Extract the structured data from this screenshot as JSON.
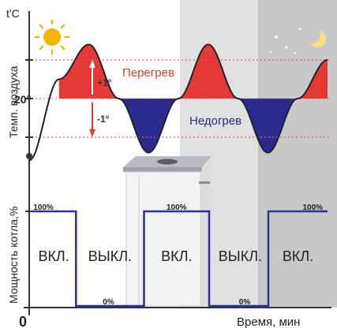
{
  "chart_data": [
    {
      "type": "line",
      "ylabel": "Темп. воздуха",
      "y_unit": "t'C",
      "y_reference_label": "20°",
      "annotations": {
        "plus_delta": "+1°",
        "minus_delta": "-1°",
        "overheat": "Перегрев",
        "underheat": "Недогрев"
      },
      "x_labels": [],
      "grid": "dotted red lines at +1° and -1° around 20°",
      "series": [
        {
          "values": [
            {
              "x": 0.0,
              "y": -1.6
            },
            {
              "x": 0.1,
              "y": 0.5
            },
            {
              "x": 0.2,
              "y": 1.4
            },
            {
              "x": 0.3,
              "y": 0.0
            },
            {
              "x": 0.4,
              "y": -1.4
            },
            {
              "x": 0.5,
              "y": 0.0
            },
            {
              "x": 0.6,
              "y": 1.4
            },
            {
              "x": 0.7,
              "y": 0.0
            },
            {
              "x": 0.8,
              "y": -1.4
            },
            {
              "x": 0.9,
              "y": 0.0
            },
            {
              "x": 1.0,
              "y": 1.0
            }
          ]
        }
      ]
    },
    {
      "type": "line",
      "ylabel": "Мощность котла,%",
      "xlabel": "Время, мин",
      "origin_label": "0",
      "level_labels": {
        "high": "100%",
        "low": "0%"
      },
      "series": [
        {
          "values": [
            {
              "x": 0.0,
              "y": 100
            },
            {
              "x": 0.15,
              "y": 100
            },
            {
              "x": 0.15,
              "y": 0
            },
            {
              "x": 0.38,
              "y": 0
            },
            {
              "x": 0.38,
              "y": 100
            },
            {
              "x": 0.6,
              "y": 100
            },
            {
              "x": 0.6,
              "y": 0
            },
            {
              "x": 0.8,
              "y": 0
            },
            {
              "x": 0.8,
              "y": 100
            },
            {
              "x": 1.0,
              "y": 100
            }
          ]
        }
      ],
      "states": [
        "ВКЛ.",
        "ВЫКЛ.",
        "ВКЛ.",
        "ВЫКЛ.",
        "ВКЛ."
      ],
      "percent_labels": [
        "100%",
        "0%",
        "100%",
        "0%",
        "100%"
      ]
    }
  ],
  "colors": {
    "overheat": "#e53935",
    "underheat": "#2a2a8f",
    "temperature_line": "#222222",
    "power_line": "#2e3192",
    "grid_dotted": "#e06060",
    "night_band": "#c8c8c8",
    "dusk_band": "#e1e1e1"
  },
  "icons": [
    "sun-icon",
    "moon-icon",
    "star-icon",
    "boiler-illustration"
  ]
}
